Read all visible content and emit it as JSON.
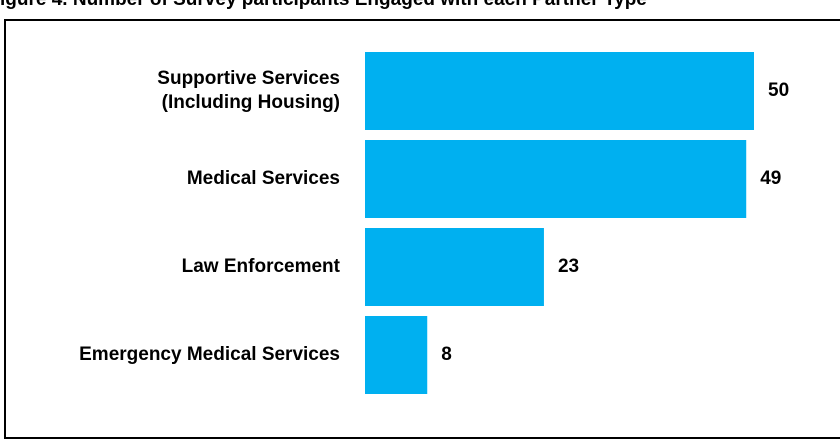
{
  "title": "igure 4. Number of Survey participants Engaged with each Partner Type",
  "colors": {
    "bar": "#00B0F0",
    "text": "#000000",
    "frame": "#000000"
  },
  "chart_data": {
    "type": "bar",
    "orientation": "horizontal",
    "categories": [
      [
        "Supportive Services",
        "(Including Housing)"
      ],
      [
        "Medical Services"
      ],
      [
        "Law Enforcement"
      ],
      [
        "Emergency Medical Services"
      ]
    ],
    "values": [
      50,
      49,
      23,
      8
    ],
    "xlim": [
      0,
      50
    ],
    "grid": false,
    "legend": "none"
  }
}
